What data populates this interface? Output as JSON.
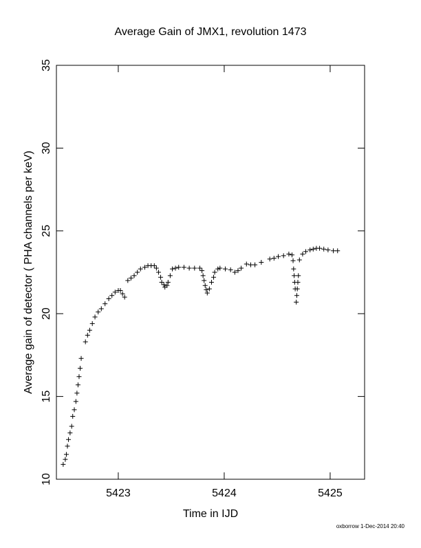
{
  "chart_data": {
    "type": "scatter",
    "title": "Average Gain of JMX1, revolution 1473",
    "x_label": "Time in IJD",
    "y_label": "Average gain of detector ( PHA channels per keV)",
    "footer": "oxborrow 1-Dec-2014 20:40",
    "marker": "plus",
    "color": "#000000",
    "xlim": [
      5422.416,
      5425.325
    ],
    "xticks": [
      5423,
      5424,
      5425
    ],
    "ylim": [
      10,
      35
    ],
    "yticks": [
      10,
      15,
      20,
      25,
      30,
      35
    ],
    "x": [
      5422.48,
      5422.5,
      5422.51,
      5422.52,
      5422.53,
      5422.545,
      5422.56,
      5422.57,
      5422.585,
      5422.6,
      5422.61,
      5422.62,
      5422.63,
      5422.64,
      5422.65,
      5422.69,
      5422.71,
      5422.73,
      5422.755,
      5422.78,
      5422.81,
      5422.84,
      5422.875,
      5422.91,
      5422.94,
      5422.97,
      5423.0,
      5423.02,
      5423.04,
      5423.06,
      5423.09,
      5423.12,
      5423.15,
      5423.18,
      5423.21,
      5423.25,
      5423.28,
      5423.31,
      5423.34,
      5423.36,
      5423.38,
      5423.4,
      5423.41,
      5423.43,
      5423.44,
      5423.46,
      5423.47,
      5423.49,
      5423.51,
      5423.54,
      5423.57,
      5423.62,
      5423.67,
      5423.72,
      5423.77,
      5423.79,
      5423.8,
      5423.81,
      5423.82,
      5423.83,
      5423.84,
      5423.86,
      5423.88,
      5423.9,
      5423.91,
      5423.94,
      5423.96,
      5424.01,
      5424.06,
      5424.1,
      5424.13,
      5424.16,
      5424.21,
      5424.25,
      5424.29,
      5424.35,
      5424.43,
      5424.47,
      5424.51,
      5424.56,
      5424.61,
      5424.64,
      5424.65,
      5424.655,
      5424.66,
      5424.665,
      5424.67,
      5424.68,
      5424.685,
      5424.69,
      5424.695,
      5424.7,
      5424.71,
      5424.74,
      5424.77,
      5424.81,
      5424.84,
      5424.87,
      5424.9,
      5424.94,
      5424.98,
      5425.03,
      5425.07
    ],
    "y": [
      10.9,
      11.2,
      11.5,
      12.0,
      12.4,
      12.8,
      13.2,
      13.8,
      14.2,
      14.7,
      15.2,
      15.7,
      16.2,
      16.7,
      17.3,
      18.3,
      18.7,
      19.0,
      19.4,
      19.8,
      20.1,
      20.3,
      20.6,
      20.9,
      21.1,
      21.3,
      21.4,
      21.4,
      21.2,
      21.0,
      22.0,
      22.15,
      22.3,
      22.5,
      22.7,
      22.8,
      22.9,
      22.9,
      22.9,
      22.75,
      22.5,
      22.2,
      21.9,
      21.75,
      21.6,
      21.7,
      21.9,
      22.3,
      22.7,
      22.75,
      22.8,
      22.8,
      22.75,
      22.75,
      22.75,
      22.6,
      22.3,
      22.0,
      21.7,
      21.45,
      21.25,
      21.5,
      21.9,
      22.2,
      22.5,
      22.7,
      22.75,
      22.7,
      22.65,
      22.5,
      22.6,
      22.75,
      23.0,
      22.95,
      22.95,
      23.1,
      23.3,
      23.35,
      23.45,
      23.5,
      23.6,
      23.55,
      23.2,
      22.7,
      22.3,
      21.9,
      21.5,
      20.7,
      21.1,
      21.5,
      21.9,
      22.3,
      23.25,
      23.6,
      23.75,
      23.85,
      23.9,
      23.95,
      23.95,
      23.9,
      23.85,
      23.8,
      23.8
    ]
  }
}
